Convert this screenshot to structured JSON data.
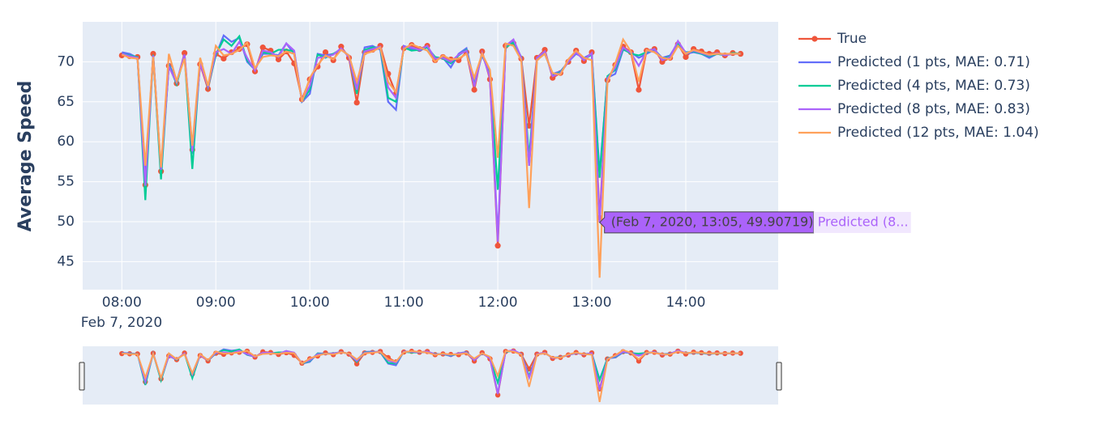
{
  "chart_data": {
    "type": "line",
    "y_label": "Average Speed",
    "x_date_label": "Feb 7, 2020",
    "xlim": [
      "2020-02-07 07:35",
      "2020-02-07 14:59"
    ],
    "xticks": [
      {
        "value": "2020-02-07 08:00",
        "label": "08:00"
      },
      {
        "value": "2020-02-07 09:00",
        "label": "09:00"
      },
      {
        "value": "2020-02-07 10:00",
        "label": "10:00"
      },
      {
        "value": "2020-02-07 11:00",
        "label": "11:00"
      },
      {
        "value": "2020-02-07 12:00",
        "label": "12:00"
      },
      {
        "value": "2020-02-07 13:00",
        "label": "13:00"
      },
      {
        "value": "2020-02-07 14:00",
        "label": "14:00"
      }
    ],
    "ylim": [
      41.5,
      75
    ],
    "yticks": [
      45,
      50,
      55,
      60,
      65,
      70
    ],
    "grid": true,
    "legend": "right",
    "range_slider": true,
    "x": [
      "2020-02-07 08:00",
      "2020-02-07 08:05",
      "2020-02-07 08:10",
      "2020-02-07 08:15",
      "2020-02-07 08:20",
      "2020-02-07 08:25",
      "2020-02-07 08:30",
      "2020-02-07 08:35",
      "2020-02-07 08:40",
      "2020-02-07 08:45",
      "2020-02-07 08:50",
      "2020-02-07 08:55",
      "2020-02-07 09:00",
      "2020-02-07 09:05",
      "2020-02-07 09:10",
      "2020-02-07 09:15",
      "2020-02-07 09:20",
      "2020-02-07 09:25",
      "2020-02-07 09:30",
      "2020-02-07 09:35",
      "2020-02-07 09:40",
      "2020-02-07 09:45",
      "2020-02-07 09:50",
      "2020-02-07 09:55",
      "2020-02-07 10:00",
      "2020-02-07 10:05",
      "2020-02-07 10:10",
      "2020-02-07 10:15",
      "2020-02-07 10:20",
      "2020-02-07 10:25",
      "2020-02-07 10:30",
      "2020-02-07 10:35",
      "2020-02-07 10:40",
      "2020-02-07 10:45",
      "2020-02-07 10:50",
      "2020-02-07 10:55",
      "2020-02-07 11:00",
      "2020-02-07 11:05",
      "2020-02-07 11:10",
      "2020-02-07 11:15",
      "2020-02-07 11:20",
      "2020-02-07 11:25",
      "2020-02-07 11:30",
      "2020-02-07 11:35",
      "2020-02-07 11:40",
      "2020-02-07 11:45",
      "2020-02-07 11:50",
      "2020-02-07 11:55",
      "2020-02-07 12:00",
      "2020-02-07 12:05",
      "2020-02-07 12:10",
      "2020-02-07 12:15",
      "2020-02-07 12:20",
      "2020-02-07 12:25",
      "2020-02-07 12:30",
      "2020-02-07 12:35",
      "2020-02-07 12:40",
      "2020-02-07 12:45",
      "2020-02-07 12:50",
      "2020-02-07 12:55",
      "2020-02-07 13:00",
      "2020-02-07 13:05",
      "2020-02-07 13:10",
      "2020-02-07 13:15",
      "2020-02-07 13:20",
      "2020-02-07 13:25",
      "2020-02-07 13:30",
      "2020-02-07 13:35",
      "2020-02-07 13:40",
      "2020-02-07 13:45",
      "2020-02-07 13:50",
      "2020-02-07 13:55",
      "2020-02-07 14:00",
      "2020-02-07 14:05",
      "2020-02-07 14:10",
      "2020-02-07 14:15",
      "2020-02-07 14:20",
      "2020-02-07 14:25",
      "2020-02-07 14:30",
      "2020-02-07 14:35"
    ],
    "series": [
      {
        "name": "True",
        "color": "#EF553B",
        "markers": true,
        "values": [
          70.8,
          70.7,
          70.6,
          54.6,
          71.0,
          56.3,
          69.5,
          67.3,
          71.1,
          59.0,
          69.7,
          66.6,
          71.0,
          70.4,
          71.2,
          71.6,
          72.2,
          68.8,
          71.8,
          71.4,
          70.3,
          71.3,
          69.8,
          65.3,
          67.8,
          69.4,
          71.2,
          70.2,
          71.9,
          70.5,
          64.9,
          71.2,
          71.5,
          72.0,
          68.5,
          66.0,
          71.7,
          72.1,
          71.6,
          72.0,
          70.2,
          70.6,
          70.3,
          70.2,
          71.2,
          66.5,
          71.3,
          67.8,
          47.0,
          72.0,
          72.3,
          70.4,
          62.0,
          70.5,
          71.5,
          68.0,
          68.6,
          70.0,
          71.4,
          70.1,
          71.2,
          50.5,
          67.7,
          69.6,
          71.9,
          71.2,
          66.5,
          71.4,
          71.6,
          70.0,
          70.5,
          72.2,
          70.6,
          71.6,
          71.3,
          71.0,
          71.2,
          70.8,
          71.1,
          71.0
        ]
      },
      {
        "name": "Predicted (1 pts, MAE: 0.71)",
        "color": "#636EFA",
        "values": [
          71.2,
          71.0,
          70.5,
          55.5,
          70.8,
          56.0,
          69.8,
          67.5,
          70.9,
          58.5,
          70.0,
          67.0,
          70.8,
          73.3,
          72.5,
          73.0,
          70.0,
          69.0,
          71.0,
          71.0,
          70.8,
          72.3,
          71.0,
          65.0,
          66.0,
          71.0,
          70.8,
          71.0,
          71.5,
          70.8,
          67.0,
          71.8,
          72.0,
          71.5,
          65.0,
          64.0,
          72.0,
          71.6,
          71.4,
          71.8,
          70.5,
          70.5,
          69.3,
          71.0,
          71.7,
          67.5,
          70.8,
          68.5,
          48.0,
          72.0,
          72.5,
          70.5,
          57.0,
          70.3,
          71.0,
          68.5,
          68.8,
          70.0,
          71.0,
          70.5,
          71.0,
          56.0,
          68.0,
          68.5,
          71.5,
          71.2,
          70.5,
          71.0,
          71.5,
          70.5,
          70.8,
          72.4,
          71.0,
          71.2,
          71.0,
          70.5,
          71.0,
          70.9,
          71.0,
          71.0
        ]
      },
      {
        "name": "Predicted (4 pts, MAE: 0.73)",
        "color": "#00CC96",
        "values": [
          71.0,
          70.8,
          70.6,
          52.7,
          70.9,
          55.3,
          69.6,
          67.2,
          70.8,
          56.6,
          70.2,
          66.8,
          70.9,
          72.8,
          72.0,
          73.2,
          70.2,
          69.0,
          71.2,
          71.0,
          71.5,
          71.5,
          71.3,
          65.1,
          66.5,
          70.9,
          70.5,
          71.0,
          71.6,
          70.7,
          66.0,
          71.5,
          71.8,
          71.8,
          65.5,
          65.0,
          71.8,
          71.4,
          71.5,
          71.8,
          70.6,
          70.4,
          69.8,
          70.8,
          71.5,
          67.0,
          71.0,
          68.2,
          54.0,
          71.8,
          72.4,
          70.6,
          58.0,
          70.4,
          71.2,
          68.3,
          68.7,
          70.0,
          71.2,
          70.3,
          70.9,
          55.5,
          68.2,
          69.0,
          71.6,
          71.0,
          70.8,
          71.2,
          71.6,
          70.3,
          70.7,
          72.2,
          71.2,
          71.3,
          71.0,
          70.7,
          71.0,
          70.8,
          71.1,
          71.0
        ]
      },
      {
        "name": "Predicted (8 pts, MAE: 0.83)",
        "color": "#AB63FA",
        "values": [
          71.0,
          70.7,
          70.5,
          54.5,
          70.8,
          56.5,
          69.4,
          67.4,
          70.9,
          58.8,
          69.8,
          66.9,
          71.2,
          71.6,
          71.0,
          72.5,
          70.5,
          68.9,
          71.4,
          71.2,
          70.6,
          72.3,
          71.4,
          65.2,
          67.0,
          70.5,
          70.6,
          70.9,
          71.7,
          70.6,
          66.5,
          71.3,
          71.6,
          71.9,
          66.8,
          65.5,
          71.9,
          71.8,
          71.5,
          72.0,
          70.4,
          70.5,
          70.0,
          70.9,
          71.4,
          66.9,
          71.1,
          68.0,
          47.5,
          72.0,
          72.8,
          70.5,
          57.0,
          70.5,
          71.3,
          68.2,
          68.6,
          70.0,
          71.2,
          70.2,
          71.1,
          49.90719,
          67.9,
          69.3,
          71.8,
          71.1,
          69.5,
          71.3,
          71.6,
          70.2,
          70.6,
          72.6,
          71.1,
          71.4,
          71.1,
          70.8,
          71.1,
          70.8,
          71.0,
          71.0
        ]
      },
      {
        "name": "Predicted (12 pts, MAE: 1.04)",
        "color": "#FFA15A",
        "values": [
          70.9,
          70.5,
          70.4,
          57.0,
          70.6,
          56.8,
          71.0,
          67.6,
          70.4,
          59.5,
          70.5,
          67.0,
          72.0,
          70.8,
          71.0,
          71.5,
          72.4,
          69.2,
          70.6,
          70.8,
          70.7,
          71.3,
          71.0,
          65.0,
          68.0,
          69.6,
          70.8,
          70.3,
          71.5,
          70.8,
          67.5,
          71.0,
          71.3,
          71.8,
          67.5,
          66.2,
          71.6,
          72.2,
          71.8,
          71.4,
          70.0,
          70.8,
          70.3,
          70.4,
          71.0,
          68.0,
          71.0,
          69.0,
          58.0,
          72.3,
          72.0,
          70.2,
          51.7,
          70.2,
          71.0,
          68.6,
          68.4,
          70.3,
          71.4,
          70.5,
          70.2,
          43.0,
          67.5,
          69.8,
          72.8,
          71.3,
          67.5,
          71.5,
          71.2,
          70.5,
          70.3,
          72.0,
          71.0,
          71.5,
          71.2,
          70.9,
          71.0,
          71.0,
          71.0,
          71.0
        ]
      }
    ],
    "hover": {
      "series": 3,
      "index": 61,
      "text": "(Feb 7, 2020, 13:05, 49.90719)",
      "series_label": "Predicted (8..."
    }
  }
}
